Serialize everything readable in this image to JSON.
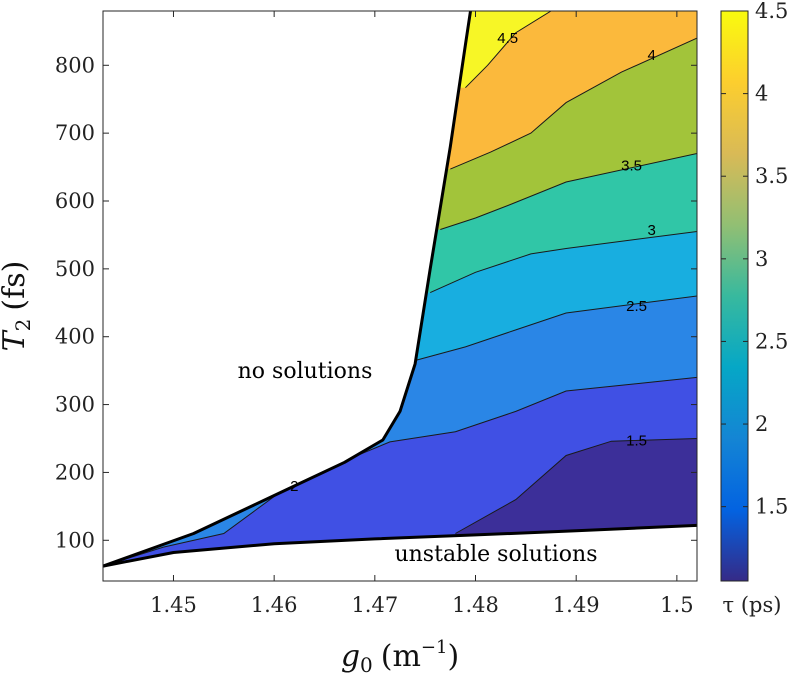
{
  "chart_data": {
    "type": "contour",
    "title": "",
    "xlabel": {
      "symbol": "g",
      "sub": "0",
      "unit": "(m",
      "unit_sup": "−1",
      "unit_close": ")"
    },
    "ylabel": {
      "symbol": "T",
      "sub": "2",
      "unit": "(fs)"
    },
    "xlim": [
      1.443,
      1.502
    ],
    "ylim": [
      40,
      880
    ],
    "xticks": [
      1.45,
      1.46,
      1.47,
      1.48,
      1.49,
      1.5
    ],
    "xtick_labels": [
      "1.45",
      "1.46",
      "1.47",
      "1.48",
      "1.49",
      "1.5"
    ],
    "yticks": [
      100,
      200,
      300,
      400,
      500,
      600,
      700,
      800
    ],
    "ytick_labels": [
      "100",
      "200",
      "300",
      "400",
      "500",
      "600",
      "700",
      "800"
    ],
    "colorbar": {
      "label": "τ (ps)",
      "range": [
        1.05,
        4.5
      ],
      "ticks": [
        1.5,
        2,
        2.5,
        3,
        3.5,
        4,
        4.5
      ],
      "tick_labels": [
        "1.5",
        "2",
        "2.5",
        "3",
        "3.5",
        "4",
        "4.5"
      ],
      "colormap": [
        "#352a87",
        "#0363e1",
        "#1485d4",
        "#06a7c6",
        "#38b99e",
        "#92bf73",
        "#d9ba56",
        "#fcce2e",
        "#f9fb0e"
      ]
    },
    "annotations": {
      "no_solutions": "no solutions",
      "unstable_solutions": "unstable solutions"
    },
    "boundaries": {
      "upper": [
        [
          1.443,
          62
        ],
        [
          1.452,
          110
        ],
        [
          1.462,
          180
        ],
        [
          1.467,
          215
        ],
        [
          1.4708,
          248
        ],
        [
          1.4725,
          290
        ],
        [
          1.474,
          360
        ],
        [
          1.4755,
          500
        ],
        [
          1.4775,
          680
        ],
        [
          1.479,
          830
        ],
        [
          1.4795,
          880
        ]
      ],
      "lower": [
        [
          1.443,
          62
        ],
        [
          1.45,
          82
        ],
        [
          1.46,
          95
        ],
        [
          1.47,
          102
        ],
        [
          1.48,
          108
        ],
        [
          1.49,
          114
        ],
        [
          1.502,
          122
        ]
      ]
    },
    "bands": [
      {
        "level": 1.25,
        "color": "#3c2f99"
      },
      {
        "level": 1.75,
        "color": "#4050e4"
      },
      {
        "level": 2.25,
        "color": "#2a86e6"
      },
      {
        "level": 2.75,
        "color": "#18aee0"
      },
      {
        "level": 3.25,
        "color": "#30c6a7"
      },
      {
        "level": 3.75,
        "color": "#a2c43a"
      },
      {
        "level": 4.25,
        "color": "#fbb93c"
      },
      {
        "level": 4.5,
        "color": "#f7f626"
      }
    ],
    "contours": [
      {
        "level": 1.5,
        "label": "1.5",
        "label_at": [
          1.496,
          247
        ],
        "points": [
          [
            1.478,
            110
          ],
          [
            1.484,
            160
          ],
          [
            1.489,
            225
          ],
          [
            1.4935,
            246
          ],
          [
            1.502,
            250
          ]
        ]
      },
      {
        "level": 2,
        "label": "2",
        "label_at": [
          1.462,
          180
        ],
        "points": [
          [
            1.443,
            62
          ],
          [
            1.449,
            90
          ],
          [
            1.455,
            110
          ],
          [
            1.4605,
            170
          ],
          [
            1.465,
            205
          ],
          [
            1.4715,
            245
          ],
          [
            1.478,
            260
          ],
          [
            1.484,
            290
          ],
          [
            1.489,
            320
          ],
          [
            1.502,
            340
          ]
        ]
      },
      {
        "level": 2.5,
        "label": "2.5",
        "label_at": [
          1.496,
          445
        ],
        "points": [
          [
            1.474,
            365
          ],
          [
            1.479,
            385
          ],
          [
            1.484,
            410
          ],
          [
            1.489,
            435
          ],
          [
            1.502,
            460
          ]
        ]
      },
      {
        "level": 3,
        "label": "3",
        "label_at": [
          1.4975,
          557
        ],
        "points": [
          [
            1.4755,
            465
          ],
          [
            1.48,
            495
          ],
          [
            1.4855,
            522
          ],
          [
            1.489,
            530
          ],
          [
            1.502,
            555
          ]
        ]
      },
      {
        "level": 3.5,
        "label": "3.5",
        "label_at": [
          1.4955,
          652
        ],
        "points": [
          [
            1.4765,
            558
          ],
          [
            1.48,
            575
          ],
          [
            1.4835,
            595
          ],
          [
            1.489,
            628
          ],
          [
            1.502,
            670
          ]
        ]
      },
      {
        "level": 4,
        "label": "4",
        "label_at": [
          1.4975,
          815
        ],
        "points": [
          [
            1.4775,
            647
          ],
          [
            1.4815,
            672
          ],
          [
            1.4855,
            700
          ],
          [
            1.489,
            745
          ],
          [
            1.4945,
            790
          ],
          [
            1.502,
            840
          ]
        ]
      },
      {
        "level": 4.5,
        "label": "4.5",
        "label_at": [
          1.4832,
          840
        ],
        "points": [
          [
            1.479,
            767
          ],
          [
            1.4812,
            800
          ],
          [
            1.484,
            848
          ],
          [
            1.4875,
            880
          ]
        ]
      }
    ]
  }
}
